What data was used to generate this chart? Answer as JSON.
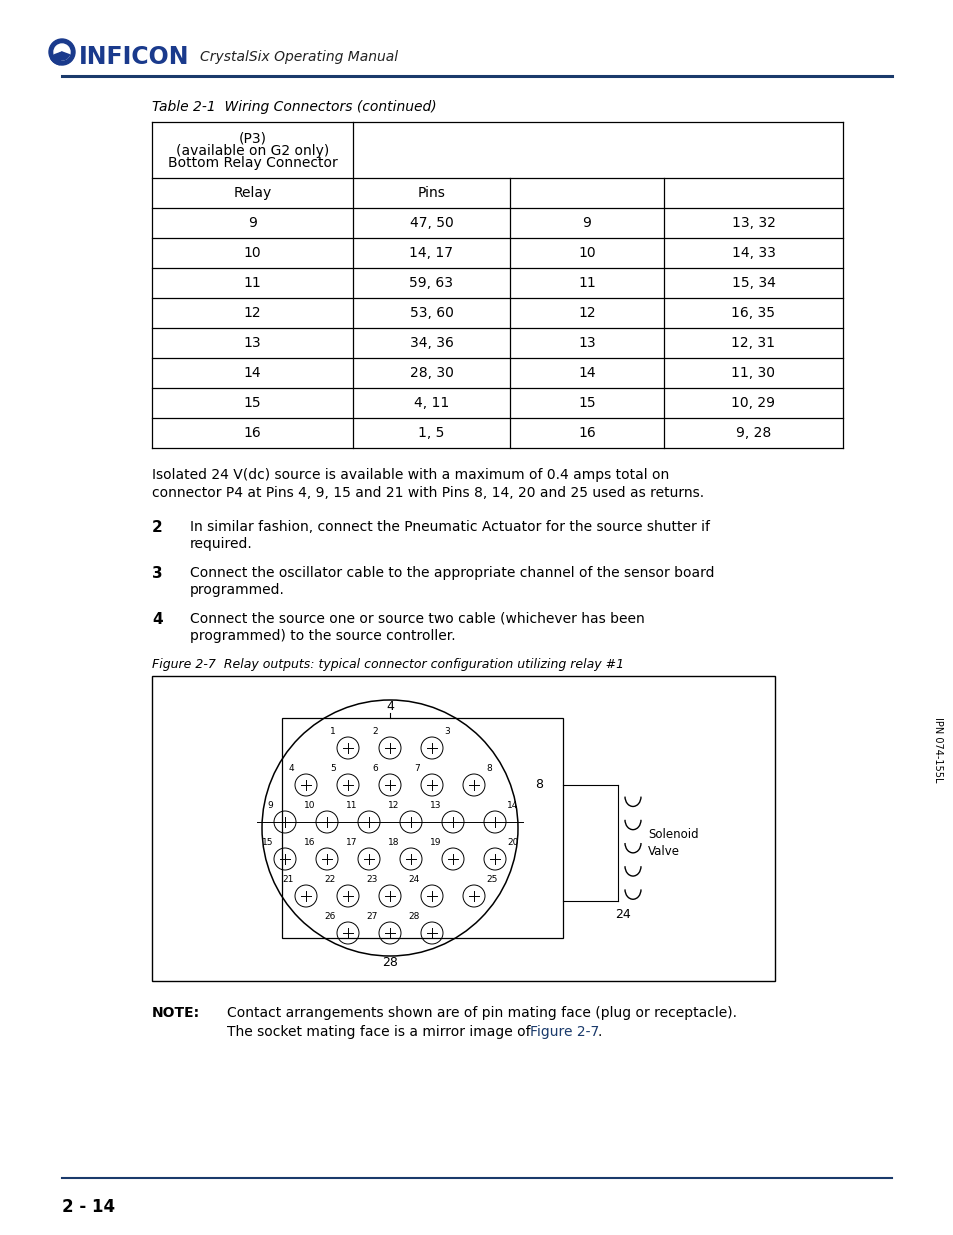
{
  "title": "CrystalSix Operating Manual",
  "table_caption": "Table 2-1  Wiring Connectors (continued)",
  "table_data": [
    [
      "9",
      "47, 50",
      "9",
      "13, 32"
    ],
    [
      "10",
      "14, 17",
      "10",
      "14, 33"
    ],
    [
      "11",
      "59, 63",
      "11",
      "15, 34"
    ],
    [
      "12",
      "53, 60",
      "12",
      "16, 35"
    ],
    [
      "13",
      "34, 36",
      "13",
      "12, 31"
    ],
    [
      "14",
      "28, 30",
      "14",
      "11, 30"
    ],
    [
      "15",
      "4, 11",
      "15",
      "10, 29"
    ],
    [
      "16",
      "1, 5",
      "16",
      "9, 28"
    ]
  ],
  "note_text_line1": "Isolated 24 V(dc) source is available with a maximum of 0.4 amps total on",
  "note_text_line2": "connector P4 at Pins 4, 9, 15 and 21 with Pins 8, 14, 20 and 25 used as returns.",
  "step2": "In similar fashion, connect the Pneumatic Actuator for the source shutter if\nrequired.",
  "step3": "Connect the oscillator cable to the appropriate channel of the sensor board\nprogrammed.",
  "step4": "Connect the source one or source two cable (whichever has been\nprogrammed) to the source controller.",
  "fig_caption": "Figure 2-7  Relay outputs: typical connector configuration utilizing relay #1",
  "page_number": "2 - 14",
  "side_text": "IPN 074-155L",
  "background_color": "#ffffff",
  "text_color": "#000000",
  "blue_color": "#1a3a6b",
  "inficon_blue": "#1a3a8c"
}
